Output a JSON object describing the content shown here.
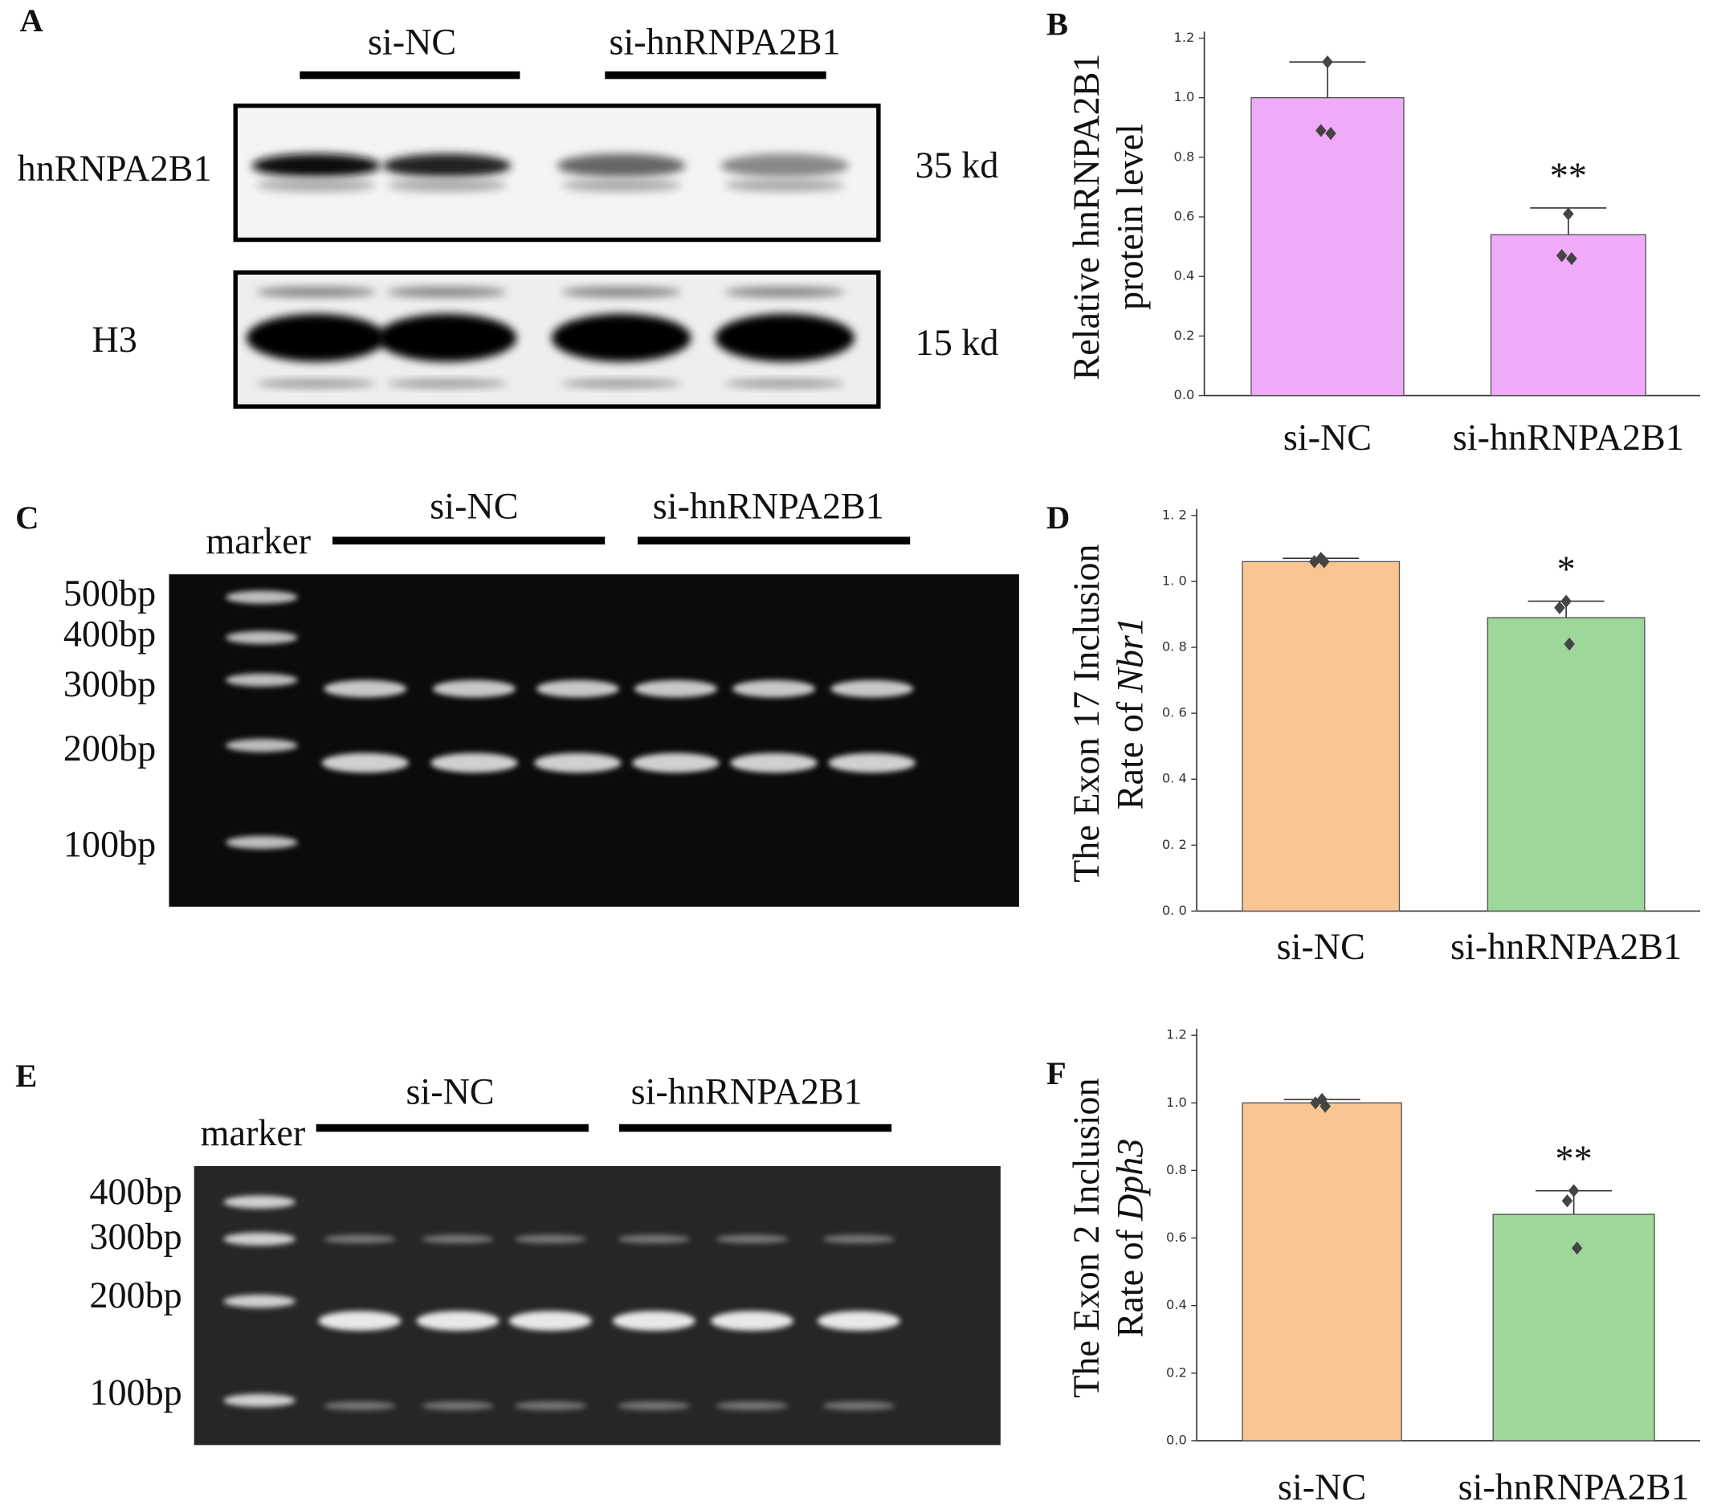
{
  "panels": {
    "A": {
      "label": "A",
      "groups": [
        "si-NC",
        "si-hnRNPA2B1"
      ],
      "rows": [
        "hnRNPA2B1",
        "H3"
      ],
      "sizes": [
        "35 kd",
        "15 kd"
      ]
    },
    "C": {
      "label": "C",
      "marker": "marker",
      "groups": [
        "si-NC",
        "si-hnRNPA2B1"
      ],
      "ladder": [
        "500bp",
        "400bp",
        "300bp",
        "200bp",
        "100bp"
      ]
    },
    "E": {
      "label": "E",
      "marker": "marker",
      "groups": [
        "si-NC",
        "si-hnRNPA2B1"
      ],
      "ladder": [
        "400bp",
        "300bp",
        "200bp",
        "100bp"
      ]
    }
  },
  "chart_data": [
    {
      "type": "bar",
      "label": "B",
      "ylabel": [
        "Relative hnRNPA2B1",
        "protein level"
      ],
      "categories": [
        "si-NC",
        "si-hnRNPA2B1"
      ],
      "values": [
        1.0,
        0.54
      ],
      "errors": [
        0.12,
        0.09
      ],
      "points": [
        [
          1.12,
          0.89,
          0.88
        ],
        [
          0.61,
          0.47,
          0.46
        ]
      ],
      "colors": [
        "#f0aafa",
        "#f0aafa"
      ],
      "annotations": [
        {
          "category": "si-hnRNPA2B1",
          "text": "**"
        }
      ],
      "ylim": [
        0,
        1.2
      ],
      "yticks": [
        {
          "value": 0,
          "label": "0.0"
        },
        {
          "value": 0.2,
          "label": "0.2"
        },
        {
          "value": 0.4,
          "label": "0.4"
        },
        {
          "value": 0.6,
          "label": "0.6"
        },
        {
          "value": 0.8,
          "label": "0.8"
        },
        {
          "value": 1,
          "label": "1.0"
        },
        {
          "value": 1.2,
          "label": "1.2"
        }
      ]
    },
    {
      "type": "bar",
      "label": "D",
      "ylabel": [
        "The Exon 17 Inclusion",
        "Rate of"
      ],
      "ylabel_italic": "Nbr1",
      "categories": [
        "si-NC",
        "si-hnRNPA2B1"
      ],
      "values": [
        1.06,
        0.89
      ],
      "errors": [
        0.01,
        0.05
      ],
      "points": [
        [
          1.07,
          1.06,
          1.06
        ],
        [
          0.94,
          0.92,
          0.81
        ]
      ],
      "colors": [
        "#f9c593",
        "#9dd89a"
      ],
      "annotations": [
        {
          "category": "si-hnRNPA2B1",
          "text": "*"
        }
      ],
      "ylim": [
        0,
        1.2
      ],
      "yticks": [
        {
          "value": 0,
          "label": "0. 0"
        },
        {
          "value": 0.2,
          "label": "0. 2"
        },
        {
          "value": 0.4,
          "label": "0. 4"
        },
        {
          "value": 0.6,
          "label": "0. 6"
        },
        {
          "value": 0.8,
          "label": "0. 8"
        },
        {
          "value": 1,
          "label": "1. 0"
        },
        {
          "value": 1.2,
          "label": "1. 2"
        }
      ]
    },
    {
      "type": "bar",
      "label": "F",
      "ylabel": [
        "The Exon 2 Inclusion",
        "Rate of"
      ],
      "ylabel_italic": "Dph3",
      "categories": [
        "si-NC",
        "si-hnRNPA2B1"
      ],
      "values": [
        1.0,
        0.67
      ],
      "errors": [
        0.01,
        0.07
      ],
      "points": [
        [
          1.01,
          1.0,
          0.99
        ],
        [
          0.74,
          0.71,
          0.57
        ]
      ],
      "colors": [
        "#f9c593",
        "#9dd89a"
      ],
      "annotations": [
        {
          "category": "si-hnRNPA2B1",
          "text": "**"
        }
      ],
      "ylim": [
        0,
        1.2
      ],
      "yticks": [
        {
          "value": 0,
          "label": "0.0"
        },
        {
          "value": 0.2,
          "label": "0.2"
        },
        {
          "value": 0.4,
          "label": "0.4"
        },
        {
          "value": 0.6,
          "label": "0.6"
        },
        {
          "value": 0.8,
          "label": "0.8"
        },
        {
          "value": 1,
          "label": "1.0"
        },
        {
          "value": 1.2,
          "label": "1.2"
        }
      ]
    }
  ]
}
